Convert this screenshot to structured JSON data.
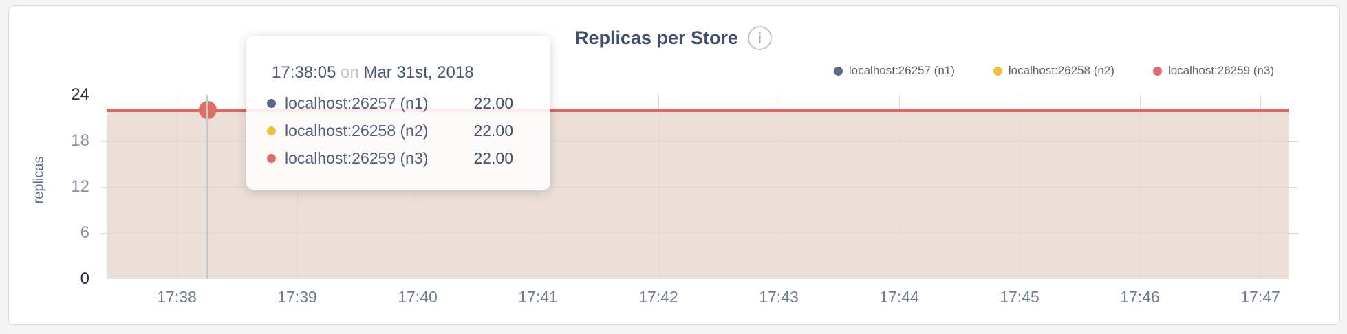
{
  "header": {
    "title": "Replicas per Store",
    "info_icon": "i"
  },
  "chart_data": {
    "type": "area",
    "title": "Replicas per Store",
    "xlabel": "",
    "ylabel": "replicas",
    "x_ticks": [
      "17:38",
      "17:39",
      "17:40",
      "17:41",
      "17:42",
      "17:43",
      "17:44",
      "17:45",
      "17:46",
      "17:47"
    ],
    "y_ticks": [
      0,
      6,
      12,
      18,
      24
    ],
    "ylim": [
      0,
      24
    ],
    "grid": true,
    "legend_position": "top-right",
    "series": [
      {
        "name": "localhost:26257 (n1)",
        "color": "#5c6a8a",
        "value": 22
      },
      {
        "name": "localhost:26258 (n2)",
        "color": "#ecc23d",
        "value": 22
      },
      {
        "name": "localhost:26259 (n3)",
        "color": "#e26a6a",
        "value": 22
      }
    ],
    "displayed_line_color": "#e0695f",
    "displayed_fill_color": "#ecdfd9"
  },
  "tooltip": {
    "time": "17:38:05",
    "conjunction": "on",
    "date": "Mar 31st, 2018",
    "rows": [
      {
        "name": "localhost:26257 (n1)",
        "value": "22.00",
        "color": "#5c6a8a"
      },
      {
        "name": "localhost:26258 (n2)",
        "value": "22.00",
        "color": "#ecc23d"
      },
      {
        "name": "localhost:26259 (n3)",
        "value": "22.00",
        "color": "#e26a6a"
      }
    ]
  },
  "colors": {
    "page_background": "#f4f4f5",
    "card_background": "#ffffff",
    "card_border": "#dcdbdb",
    "title_text": "#3f4e6e",
    "axis_text": "#8792aa",
    "axis_minmax_text": "#222d49",
    "gridline": "#ded9d6",
    "hover_guideline": "#c9c9c9"
  }
}
